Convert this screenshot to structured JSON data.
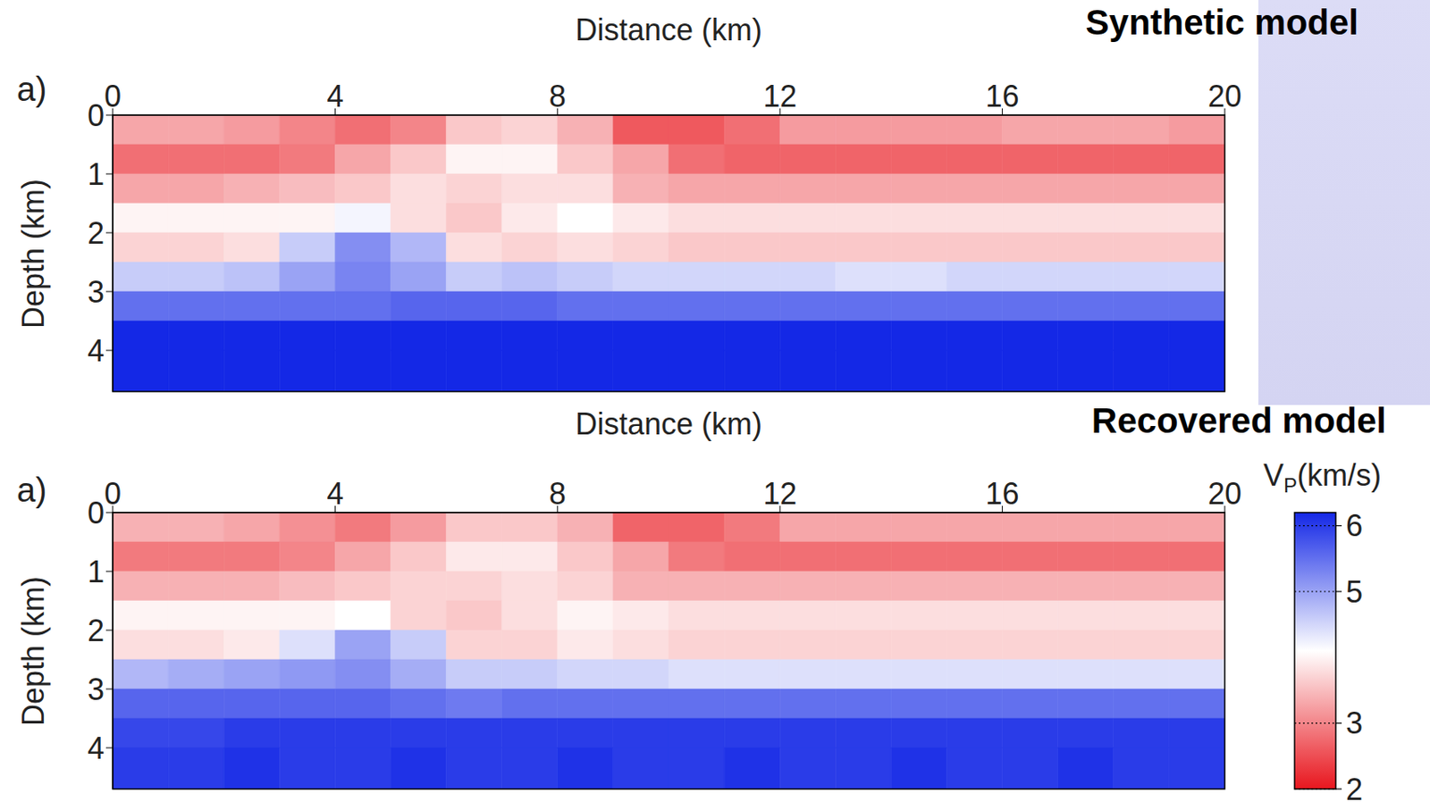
{
  "chart_data": [
    {
      "type": "heatmap",
      "title": "Synthetic model",
      "panel": "a)",
      "x_label": "Distance (km)",
      "y_label": "Depth (km)",
      "xlim": [
        0,
        20
      ],
      "xticks": [
        0,
        4,
        8,
        12,
        16,
        20
      ],
      "ylim": [
        0,
        4.7
      ],
      "yticks": [
        0,
        1,
        2,
        3,
        4
      ],
      "x_edges": [
        0,
        1,
        2,
        3,
        4,
        5,
        6,
        7,
        8,
        9,
        10,
        11,
        12,
        13,
        14,
        15,
        16,
        17,
        18,
        19,
        20
      ],
      "y_edges": [
        0,
        0.5,
        1,
        1.5,
        2,
        2.5,
        3,
        3.5,
        4,
        4.7
      ],
      "cells": [
        [
          3.3,
          3.3,
          3.2,
          3.0,
          2.8,
          3.0,
          3.6,
          3.7,
          3.4,
          2.6,
          2.6,
          2.8,
          3.2,
          3.2,
          3.2,
          3.2,
          3.3,
          3.3,
          3.3,
          3.2
        ],
        [
          2.8,
          2.8,
          2.8,
          2.9,
          3.3,
          3.6,
          4.0,
          4.0,
          3.6,
          3.3,
          2.8,
          2.7,
          2.7,
          2.7,
          2.7,
          2.7,
          2.7,
          2.7,
          2.7,
          2.7
        ],
        [
          3.3,
          3.3,
          3.4,
          3.5,
          3.6,
          3.8,
          3.7,
          3.8,
          3.8,
          3.4,
          3.3,
          3.3,
          3.3,
          3.3,
          3.3,
          3.3,
          3.3,
          3.3,
          3.3,
          3.3
        ],
        [
          4.0,
          4.0,
          4.0,
          4.0,
          4.2,
          3.8,
          3.6,
          3.9,
          4.1,
          3.9,
          3.8,
          3.8,
          3.8,
          3.8,
          3.8,
          3.8,
          3.8,
          3.8,
          3.8,
          3.8
        ],
        [
          3.7,
          3.7,
          3.8,
          4.6,
          5.2,
          4.8,
          3.8,
          3.7,
          3.8,
          3.7,
          3.6,
          3.6,
          3.6,
          3.6,
          3.6,
          3.6,
          3.6,
          3.6,
          3.6,
          3.6
        ],
        [
          4.6,
          4.6,
          4.7,
          5.0,
          5.3,
          5.0,
          4.6,
          4.7,
          4.6,
          4.5,
          4.5,
          4.5,
          4.5,
          4.4,
          4.4,
          4.5,
          4.5,
          4.5,
          4.5,
          4.5
        ],
        [
          5.5,
          5.5,
          5.5,
          5.5,
          5.5,
          5.6,
          5.6,
          5.6,
          5.5,
          5.5,
          5.5,
          5.5,
          5.5,
          5.5,
          5.5,
          5.5,
          5.5,
          5.5,
          5.5,
          5.5
        ],
        [
          6.2,
          6.2,
          6.2,
          6.2,
          6.2,
          6.2,
          6.2,
          6.2,
          6.2,
          6.2,
          6.2,
          6.2,
          6.2,
          6.2,
          6.2,
          6.2,
          6.2,
          6.2,
          6.2,
          6.2
        ],
        [
          6.2,
          6.2,
          6.2,
          6.2,
          6.2,
          6.2,
          6.2,
          6.2,
          6.2,
          6.2,
          6.2,
          6.2,
          6.2,
          6.2,
          6.2,
          6.2,
          6.2,
          6.2,
          6.2,
          6.2
        ]
      ]
    },
    {
      "type": "heatmap",
      "title": "Recovered model",
      "panel": "a)",
      "x_label": "Distance (km)",
      "y_label": "Depth (km)",
      "xlim": [
        0,
        20
      ],
      "xticks": [
        0,
        4,
        8,
        12,
        16,
        20
      ],
      "ylim": [
        0,
        4.7
      ],
      "yticks": [
        0,
        1,
        2,
        3,
        4
      ],
      "x_edges": [
        0,
        1,
        2,
        3,
        4,
        5,
        6,
        7,
        8,
        9,
        10,
        11,
        12,
        13,
        14,
        15,
        16,
        17,
        18,
        19,
        20
      ],
      "y_edges": [
        0,
        0.5,
        1,
        1.5,
        2,
        2.5,
        3,
        3.5,
        4,
        4.7
      ],
      "cells": [
        [
          3.4,
          3.4,
          3.3,
          3.1,
          2.9,
          3.2,
          3.6,
          3.6,
          3.4,
          2.7,
          2.7,
          2.9,
          3.3,
          3.3,
          3.3,
          3.3,
          3.3,
          3.3,
          3.3,
          3.3
        ],
        [
          2.9,
          2.9,
          2.9,
          3.0,
          3.3,
          3.6,
          3.9,
          3.9,
          3.6,
          3.3,
          2.9,
          2.8,
          2.8,
          2.8,
          2.8,
          2.8,
          2.8,
          2.8,
          2.8,
          2.8
        ],
        [
          3.4,
          3.4,
          3.4,
          3.5,
          3.6,
          3.7,
          3.7,
          3.8,
          3.7,
          3.4,
          3.4,
          3.4,
          3.4,
          3.4,
          3.4,
          3.4,
          3.4,
          3.4,
          3.4,
          3.4
        ],
        [
          4.0,
          4.0,
          4.0,
          4.0,
          4.1,
          3.7,
          3.6,
          3.8,
          4.0,
          3.9,
          3.8,
          3.8,
          3.8,
          3.8,
          3.8,
          3.8,
          3.8,
          3.8,
          3.8,
          3.8
        ],
        [
          3.8,
          3.8,
          3.9,
          4.4,
          5.0,
          4.6,
          3.7,
          3.7,
          3.9,
          3.8,
          3.7,
          3.7,
          3.7,
          3.7,
          3.7,
          3.7,
          3.7,
          3.7,
          3.7,
          3.7
        ],
        [
          4.8,
          4.9,
          5.0,
          5.1,
          5.2,
          4.9,
          4.6,
          4.6,
          4.5,
          4.5,
          4.4,
          4.4,
          4.4,
          4.4,
          4.4,
          4.4,
          4.4,
          4.4,
          4.4,
          4.4
        ],
        [
          5.6,
          5.6,
          5.6,
          5.6,
          5.6,
          5.5,
          5.4,
          5.5,
          5.5,
          5.5,
          5.5,
          5.5,
          5.5,
          5.5,
          5.5,
          5.5,
          5.5,
          5.5,
          5.5,
          5.5
        ],
        [
          5.9,
          5.9,
          6.0,
          6.0,
          6.0,
          6.0,
          6.0,
          6.0,
          6.0,
          6.0,
          6.0,
          6.0,
          6.0,
          6.0,
          6.0,
          6.0,
          6.0,
          6.0,
          6.0,
          6.0
        ],
        [
          6.0,
          6.0,
          6.1,
          6.0,
          6.0,
          6.1,
          6.0,
          6.0,
          6.1,
          6.0,
          6.0,
          6.1,
          6.0,
          6.0,
          6.1,
          6.0,
          6.0,
          6.1,
          6.0,
          6.0
        ]
      ]
    }
  ],
  "colorbar": {
    "label": {
      "symbol": "V",
      "subscript": "P",
      "unit": "(km/s)"
    },
    "range": [
      2,
      6.2
    ],
    "ticks": [
      2,
      3,
      5,
      6
    ],
    "colors": [
      "#e8161e",
      "#ffffff",
      "#1428e6"
    ]
  }
}
